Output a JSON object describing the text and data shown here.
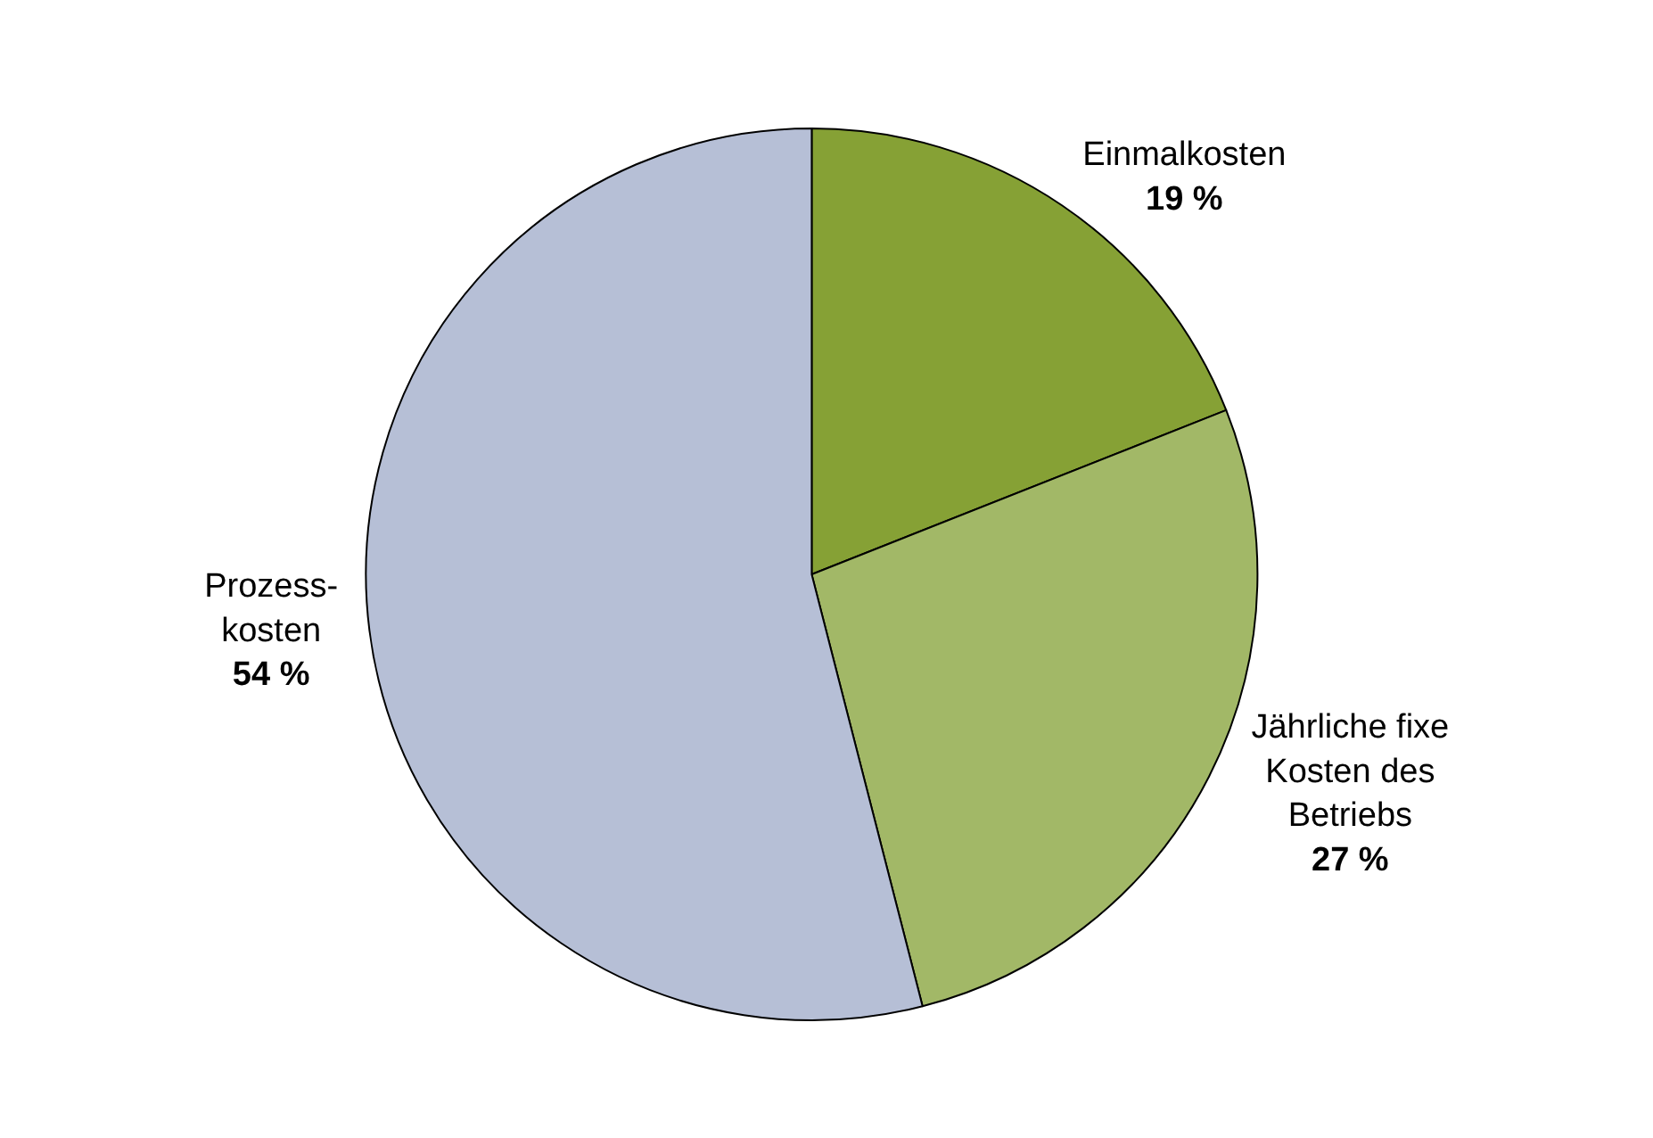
{
  "chart_data": {
    "type": "pie",
    "categories": [
      "Einmalkosten",
      "Jährliche fixe\nKosten des\nBetriebs",
      "Prozess-\nkosten"
    ],
    "values": [
      19,
      27,
      54
    ],
    "value_labels": [
      "19 %",
      "27 %",
      "54 %"
    ],
    "colors": [
      "#86a135",
      "#a2b867",
      "#b6bfd6"
    ],
    "legend": false
  }
}
